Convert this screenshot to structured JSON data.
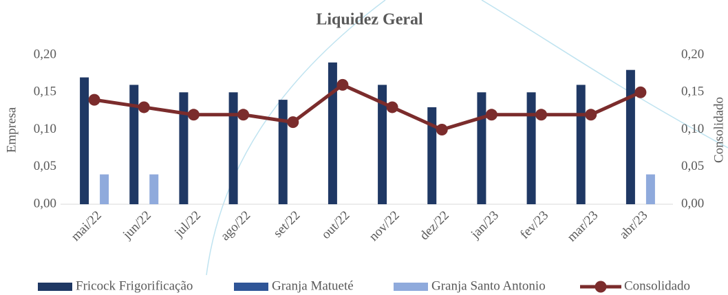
{
  "chart_data": {
    "type": "bar",
    "title": "Liquidez Geral",
    "ylabel": "Empresa",
    "y2label": "Consolidado",
    "categories": [
      "mai/22",
      "jun/22",
      "jul/22",
      "ago/22",
      "set/22",
      "out/22",
      "nov/22",
      "dez/22",
      "jan/23",
      "fev/23",
      "mar/23",
      "abr/23"
    ],
    "series": [
      {
        "name": "Fricock Frigorificação",
        "color": "#1f3864",
        "values": [
          0.17,
          0.16,
          0.15,
          0.15,
          0.14,
          0.19,
          0.16,
          0.13,
          0.15,
          0.15,
          0.16,
          0.18
        ]
      },
      {
        "name": "Granja Matueté",
        "color": "#2f5597",
        "values": [
          0,
          0,
          0,
          0,
          0,
          0,
          0,
          0,
          0,
          0,
          0,
          0
        ]
      },
      {
        "name": "Granja Santo Antonio",
        "color": "#8faadc",
        "values": [
          0.04,
          0.04,
          0,
          0,
          0,
          0,
          0,
          0,
          0,
          0,
          0,
          0.04
        ]
      },
      {
        "name": "Consolidado",
        "color": "#7b2c2c",
        "type": "line",
        "axis": "y2",
        "values": [
          0.14,
          0.13,
          0.12,
          0.12,
          0.11,
          0.16,
          0.13,
          0.1,
          0.12,
          0.12,
          0.12,
          0.15
        ]
      }
    ],
    "ylim": [
      0,
      0.2
    ],
    "yticks": [
      {
        "value": 0,
        "label": "0,00"
      },
      {
        "value": 0.05,
        "label": "0,05"
      },
      {
        "value": 0.1,
        "label": "0,10"
      },
      {
        "value": 0.15,
        "label": "0,15"
      },
      {
        "value": 0.2,
        "label": "0,20"
      }
    ],
    "y2lim": [
      0,
      0.2
    ],
    "y2ticks": [
      {
        "value": 0,
        "label": "0,00"
      },
      {
        "value": 0.05,
        "label": "0,05"
      },
      {
        "value": 0.1,
        "label": "0,10"
      },
      {
        "value": 0.15,
        "label": "0,15"
      },
      {
        "value": 0.2,
        "label": "0,20"
      }
    ],
    "grid": false,
    "legend": "bottom"
  }
}
